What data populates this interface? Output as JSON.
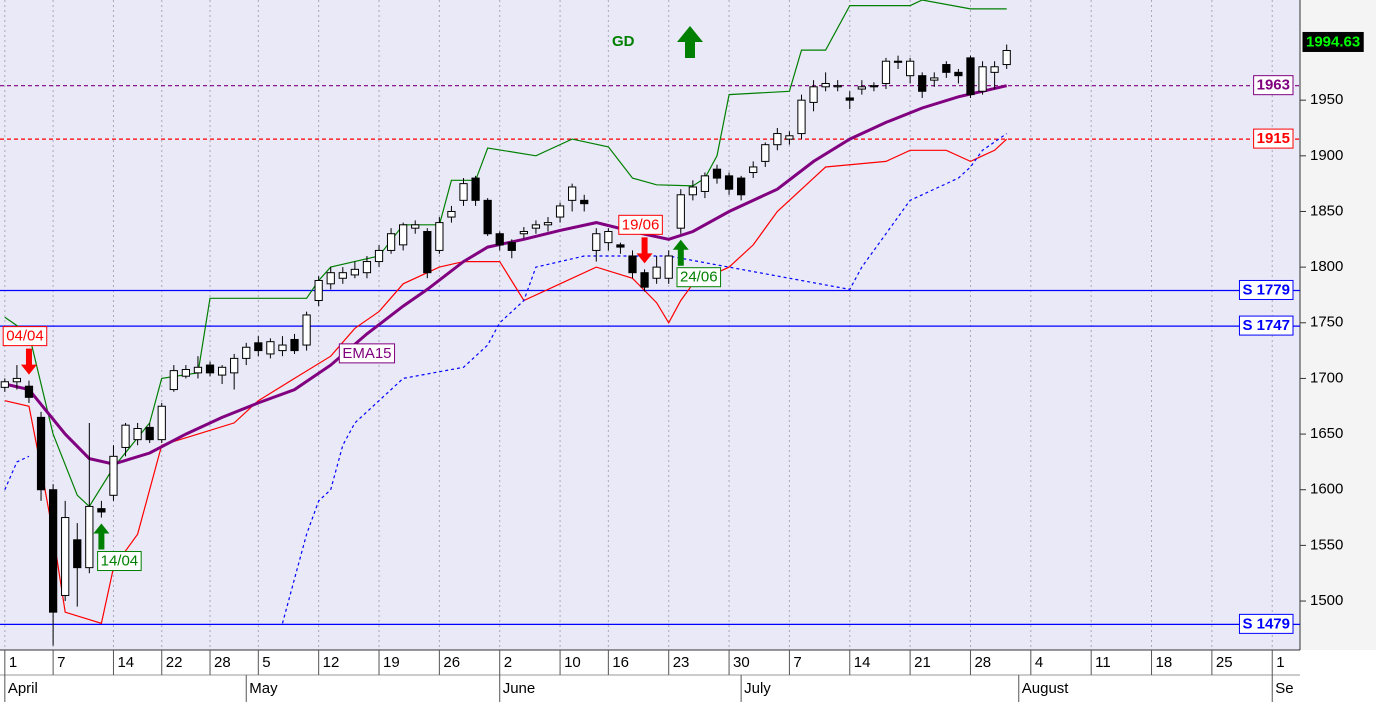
{
  "chart_data": {
    "type": "candlestick",
    "annotation": "GD",
    "x": [
      0,
      1,
      2,
      3,
      4,
      5,
      6,
      7,
      8,
      9,
      10,
      11,
      12,
      13,
      14,
      15,
      16,
      17,
      18,
      19,
      20,
      21,
      22,
      23,
      24,
      25,
      26,
      27,
      28,
      29,
      30,
      31,
      32,
      33,
      34,
      35,
      36,
      37,
      38,
      39,
      40,
      41,
      42,
      43,
      44,
      45,
      46,
      47,
      48,
      49,
      50,
      51,
      52,
      53,
      54,
      55,
      56,
      57,
      58,
      59,
      60,
      61,
      62,
      63,
      64,
      65,
      66,
      67,
      68,
      69,
      70,
      71,
      72,
      73,
      74,
      75,
      76,
      77,
      78,
      79,
      80,
      81,
      82,
      83
    ],
    "open": [
      1692,
      1697,
      1693,
      1665,
      1600,
      1505,
      1555,
      1530,
      1583,
      1595,
      1638,
      1645,
      1656,
      1645,
      1690,
      1702,
      1705,
      1712,
      1703,
      1705,
      1718,
      1732,
      1722,
      1725,
      1735,
      1730,
      1770,
      1785,
      1790,
      1793,
      1795,
      1805,
      1815,
      1820,
      1835,
      1832,
      1815,
      1845,
      1860,
      1880,
      1860,
      1830,
      1822,
      1830,
      1835,
      1838,
      1845,
      1860,
      1860,
      1815,
      1822,
      1820,
      1810,
      1795,
      1790,
      1790,
      1835,
      1865,
      1868,
      1888,
      1882,
      1880,
      1885,
      1895,
      1910,
      1915,
      1920,
      1948,
      1962,
      1962,
      1952,
      1960,
      1963,
      1965,
      1985,
      1972,
      1972,
      1968,
      1982,
      1975,
      1988,
      1958,
      1975,
      1982
    ],
    "high": [
      1700,
      1712,
      1698,
      1670,
      1605,
      1590,
      1570,
      1660,
      1590,
      1640,
      1660,
      1660,
      1660,
      1678,
      1712,
      1712,
      1720,
      1715,
      1712,
      1722,
      1732,
      1738,
      1736,
      1738,
      1740,
      1760,
      1792,
      1800,
      1800,
      1805,
      1810,
      1820,
      1835,
      1840,
      1842,
      1835,
      1845,
      1855,
      1880,
      1882,
      1862,
      1832,
      1825,
      1836,
      1842,
      1845,
      1858,
      1875,
      1865,
      1835,
      1835,
      1822,
      1815,
      1798,
      1810,
      1815,
      1870,
      1878,
      1885,
      1892,
      1885,
      1882,
      1895,
      1912,
      1925,
      1922,
      1955,
      1968,
      1975,
      1968,
      1958,
      1968,
      1966,
      1988,
      1990,
      1988,
      1975,
      1975,
      1985,
      1978,
      1990,
      1985,
      1985,
      2000
    ],
    "low": [
      1688,
      1690,
      1678,
      1590,
      1460,
      1500,
      1495,
      1525,
      1575,
      1590,
      1630,
      1640,
      1642,
      1642,
      1688,
      1700,
      1700,
      1702,
      1695,
      1690,
      1712,
      1720,
      1718,
      1720,
      1722,
      1725,
      1765,
      1780,
      1785,
      1790,
      1790,
      1800,
      1812,
      1815,
      1830,
      1790,
      1812,
      1840,
      1855,
      1855,
      1828,
      1815,
      1808,
      1826,
      1830,
      1832,
      1840,
      1850,
      1850,
      1805,
      1815,
      1812,
      1790,
      1778,
      1785,
      1785,
      1830,
      1860,
      1862,
      1875,
      1865,
      1860,
      1880,
      1890,
      1905,
      1910,
      1915,
      1940,
      1958,
      1958,
      1942,
      1955,
      1958,
      1960,
      1978,
      1965,
      1952,
      1962,
      1970,
      1965,
      1952,
      1955,
      1960,
      1978
    ],
    "close": [
      1697,
      1700,
      1683,
      1600,
      1490,
      1575,
      1530,
      1585,
      1580,
      1630,
      1658,
      1655,
      1645,
      1675,
      1707,
      1708,
      1710,
      1705,
      1710,
      1718,
      1728,
      1725,
      1733,
      1730,
      1725,
      1757,
      1788,
      1795,
      1795,
      1798,
      1805,
      1815,
      1830,
      1838,
      1838,
      1795,
      1840,
      1850,
      1875,
      1860,
      1830,
      1820,
      1815,
      1832,
      1838,
      1840,
      1855,
      1872,
      1857,
      1830,
      1832,
      1818,
      1795,
      1782,
      1800,
      1810,
      1865,
      1872,
      1882,
      1880,
      1870,
      1865,
      1890,
      1910,
      1920,
      1918,
      1950,
      1962,
      1965,
      1963,
      1950,
      1962,
      1962,
      1985,
      1984,
      1985,
      1958,
      1970,
      1975,
      1972,
      1955,
      1980,
      1980,
      1994.63
    ],
    "up_color": "#ffffff",
    "down_color": "#000000",
    "series": [
      {
        "color": "#008000",
        "x": [
          0,
          2,
          4,
          6,
          7,
          9,
          12,
          13,
          16,
          17,
          25,
          26,
          27,
          31,
          33,
          36,
          37,
          39,
          40,
          44,
          47,
          50,
          52,
          54,
          57,
          58,
          59,
          60,
          65,
          66,
          68,
          70,
          75,
          76,
          80,
          83
        ],
        "values": [
          1755,
          1740,
          1650,
          1595,
          1585,
          1620,
          1660,
          1700,
          1705,
          1772,
          1772,
          1788,
          1800,
          1810,
          1838,
          1838,
          1878,
          1878,
          1907,
          1900,
          1915,
          1908,
          1880,
          1874,
          1873,
          1880,
          1900,
          1955,
          1958,
          1995,
          1995,
          2035,
          2035,
          2040,
          2032,
          2032
        ]
      },
      {
        "color": "#ff0000",
        "x": [
          0,
          2,
          3,
          4,
          5,
          8,
          9,
          11,
          13,
          16,
          19,
          21,
          24,
          27,
          29,
          31,
          33,
          36,
          38,
          41,
          43,
          46,
          49,
          52,
          54,
          55,
          56,
          57,
          60,
          62,
          64,
          67,
          68,
          73,
          75,
          78,
          80,
          81,
          82,
          83
        ],
        "values": [
          1680,
          1675,
          1620,
          1560,
          1490,
          1480,
          1530,
          1560,
          1640,
          1650,
          1660,
          1680,
          1700,
          1720,
          1745,
          1760,
          1785,
          1800,
          1805,
          1805,
          1770,
          1785,
          1800,
          1790,
          1768,
          1750,
          1770,
          1785,
          1800,
          1820,
          1850,
          1880,
          1890,
          1895,
          1905,
          1905,
          1895,
          1900,
          1905,
          1915
        ]
      },
      {
        "color": "#0000ff",
        "dash": true,
        "x": [
          0,
          1,
          2,
          3,
          23,
          24,
          25,
          26,
          27,
          28,
          29,
          31,
          33,
          38,
          40,
          41,
          43,
          44,
          46,
          48,
          55,
          70,
          71,
          73,
          75,
          77,
          79,
          80,
          81,
          83
        ],
        "values": [
          1600,
          1625,
          1630,
          null,
          1480,
          1520,
          1560,
          1590,
          1600,
          1640,
          1660,
          1680,
          1700,
          1710,
          1730,
          1750,
          1770,
          1800,
          1805,
          1810,
          1810,
          1780,
          1800,
          1830,
          1860,
          1870,
          1880,
          1890,
          1905,
          1920
        ]
      },
      {
        "name": "EMA15",
        "color": "#800080",
        "width": 3,
        "x": [
          0,
          2,
          5,
          7,
          9,
          12,
          15,
          18,
          21,
          24,
          27,
          30,
          33,
          35,
          38,
          40,
          43,
          46,
          49,
          52,
          55,
          57,
          60,
          64,
          67,
          70,
          73,
          76,
          79,
          83
        ],
        "values": [
          1695,
          1690,
          1650,
          1628,
          1623,
          1633,
          1650,
          1665,
          1678,
          1690,
          1712,
          1740,
          1765,
          1780,
          1805,
          1818,
          1825,
          1833,
          1840,
          1832,
          1825,
          1832,
          1850,
          1870,
          1895,
          1915,
          1930,
          1943,
          1953,
          1963
        ]
      }
    ],
    "levels": [
      {
        "value": 1963,
        "label": "1963",
        "color": "#800080",
        "dash": true
      },
      {
        "value": 1915,
        "label": "1915",
        "color": "#ff0000",
        "dash": true
      },
      {
        "value": 1779,
        "label": "S 1779",
        "color": "#0000ff"
      },
      {
        "value": 1747,
        "label": "S 1747",
        "color": "#0000ff"
      },
      {
        "value": 1479,
        "label": "S 1479",
        "color": "#0000ff"
      }
    ],
    "signals": [
      {
        "x": 2,
        "label": "04/04",
        "direction": "down",
        "color": "#ff0000"
      },
      {
        "x": 8,
        "label": "14/04",
        "direction": "up",
        "color": "#008000"
      },
      {
        "x": 53,
        "label": "19/06",
        "direction": "down",
        "color": "#ff0000"
      },
      {
        "x": 56,
        "label": "24/06",
        "direction": "up",
        "color": "#008000"
      }
    ],
    "xlim": [
      -0.4,
      107.3
    ],
    "ylim": [
      1456,
      2040
    ],
    "yticks": [
      1500,
      1550,
      1600,
      1650,
      1700,
      1750,
      1800,
      1850,
      1900,
      1950
    ],
    "xticks": [
      {
        "value": 0,
        "label": "1"
      },
      {
        "value": 4,
        "label": "7"
      },
      {
        "value": 9,
        "label": "14"
      },
      {
        "value": 13,
        "label": "22"
      },
      {
        "value": 17,
        "label": "28"
      },
      {
        "value": 21,
        "label": "5"
      },
      {
        "value": 26,
        "label": "12"
      },
      {
        "value": 31,
        "label": "19"
      },
      {
        "value": 36,
        "label": "26"
      },
      {
        "value": 41,
        "label": "2"
      },
      {
        "value": 46,
        "label": "10"
      },
      {
        "value": 50,
        "label": "16"
      },
      {
        "value": 55,
        "label": "23"
      },
      {
        "value": 60,
        "label": "30"
      },
      {
        "value": 65,
        "label": "7"
      },
      {
        "value": 70,
        "label": "14"
      },
      {
        "value": 75,
        "label": "21"
      },
      {
        "value": 80,
        "label": "28"
      },
      {
        "value": 85,
        "label": "4"
      },
      {
        "value": 90,
        "label": "11"
      },
      {
        "value": 95,
        "label": "18"
      },
      {
        "value": 100,
        "label": "25"
      },
      {
        "value": 105,
        "label": "1"
      }
    ],
    "month_ticks": [
      {
        "value": 0,
        "label": "April"
      },
      {
        "value": 20,
        "label": "May"
      },
      {
        "value": 41,
        "label": "June"
      },
      {
        "value": 61,
        "label": "July"
      },
      {
        "value": 84,
        "label": "August"
      },
      {
        "value": 105,
        "label": "Se"
      }
    ],
    "grid": true
  }
}
